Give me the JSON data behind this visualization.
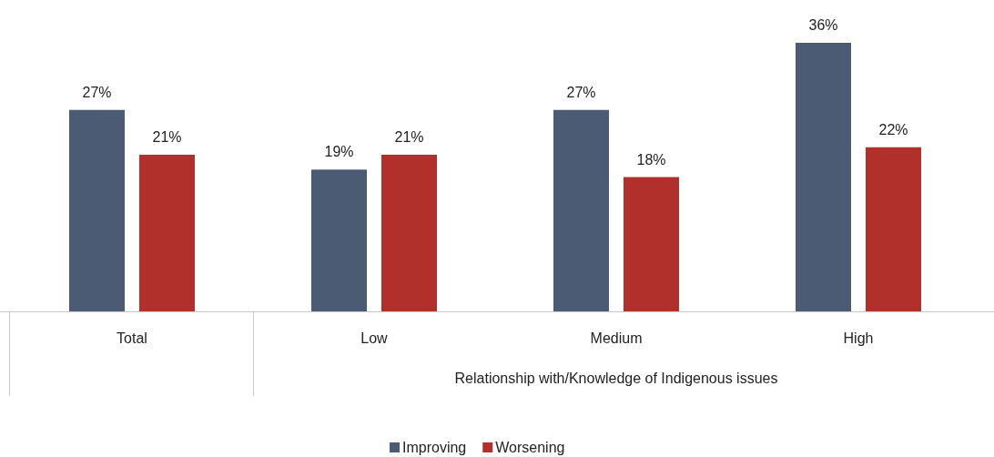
{
  "chart_data": {
    "type": "bar",
    "categories": [
      "Total",
      "Low",
      "Medium",
      "High"
    ],
    "xlabel": "Relationship with/Knowledge of Indigenous issues",
    "series": [
      {
        "name": "Improving",
        "color": "#4b5b74",
        "values": [
          27,
          19,
          27,
          36
        ],
        "value_labels": [
          "27%",
          "19%",
          "27%",
          "36%"
        ]
      },
      {
        "name": "Worsening",
        "color": "#b1302b",
        "values": [
          21,
          21,
          18,
          22
        ],
        "value_labels": [
          "21%",
          "21%",
          "18%",
          "22%"
        ]
      }
    ],
    "legend": "bottom",
    "grid": false
  }
}
